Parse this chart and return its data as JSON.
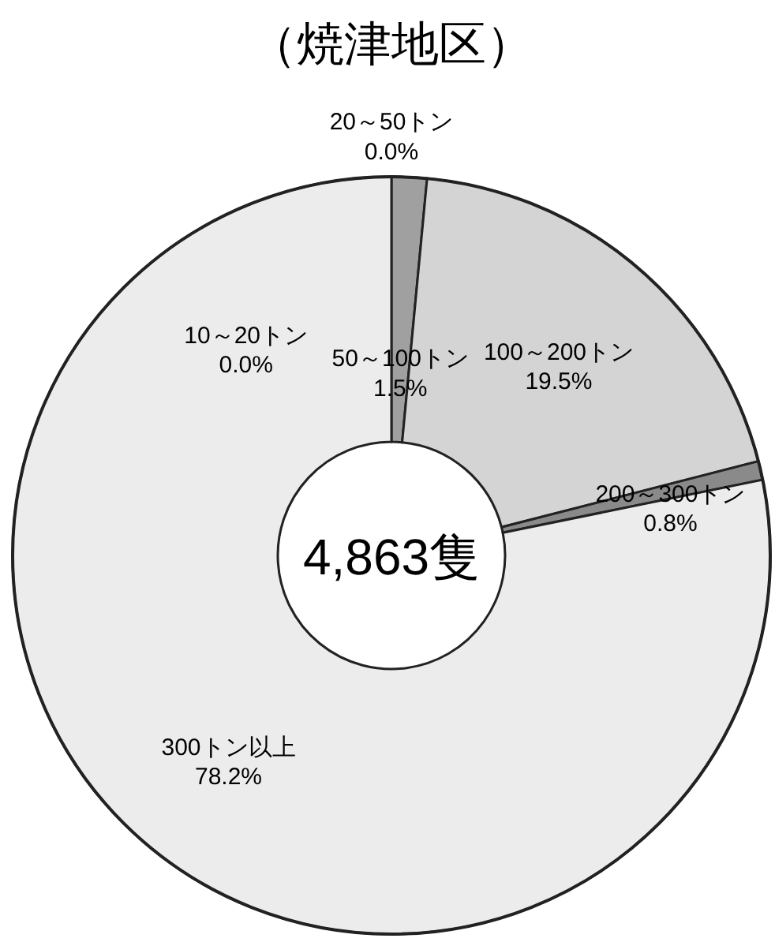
{
  "chart_data": {
    "type": "donut",
    "title": "（焼津地区）",
    "categories": [
      "10～20トン",
      "20～50トン",
      "50～100トン",
      "100～200トン",
      "200～300トン",
      "300トン以上"
    ],
    "values": [
      0.0,
      0.0,
      1.5,
      19.5,
      0.8,
      78.2
    ],
    "value_labels": [
      "0.0%",
      "0.0%",
      "1.5%",
      "19.5%",
      "0.8%",
      "78.2%"
    ],
    "colors": [
      "#999999",
      "#bbbbbb",
      "#a0a0a0",
      "#d4d4d4",
      "#8a8a8a",
      "#ececec"
    ],
    "annotations": [
      "4,863隻"
    ]
  }
}
